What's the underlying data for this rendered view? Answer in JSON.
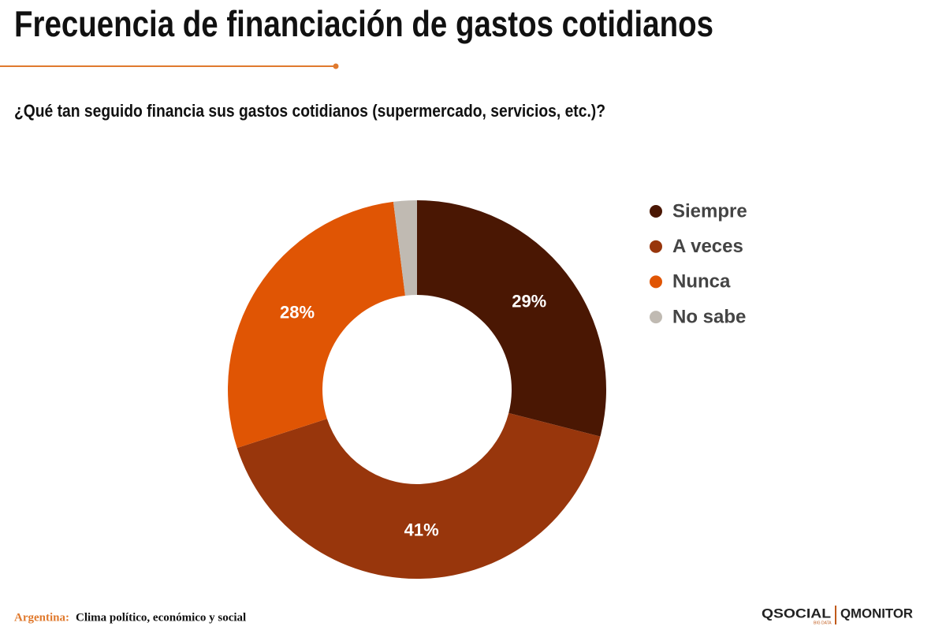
{
  "header": {
    "title": "Frecuencia de financiación de gastos cotidianos"
  },
  "chart_data": {
    "type": "donut",
    "title": "¿Qué tan seguido financia sus gastos cotidianos (supermercado, servicios, etc.)?",
    "categories": [
      "Siempre",
      "A veces",
      "Nunca",
      "No sabe"
    ],
    "values": [
      29,
      41,
      28,
      2
    ],
    "value_labels": [
      "29%",
      "41%",
      "28%",
      null
    ],
    "colors": [
      "#4a1703",
      "#98360c",
      "#e05504",
      "#c0bab2"
    ],
    "legend": "right"
  },
  "footer": {
    "region": "Argentina:",
    "topic": "Clima político, económico y social",
    "logo_left": "QSOCIAL",
    "logo_left_tag": "BIG DATA",
    "logo_right": "QMONITOR"
  }
}
